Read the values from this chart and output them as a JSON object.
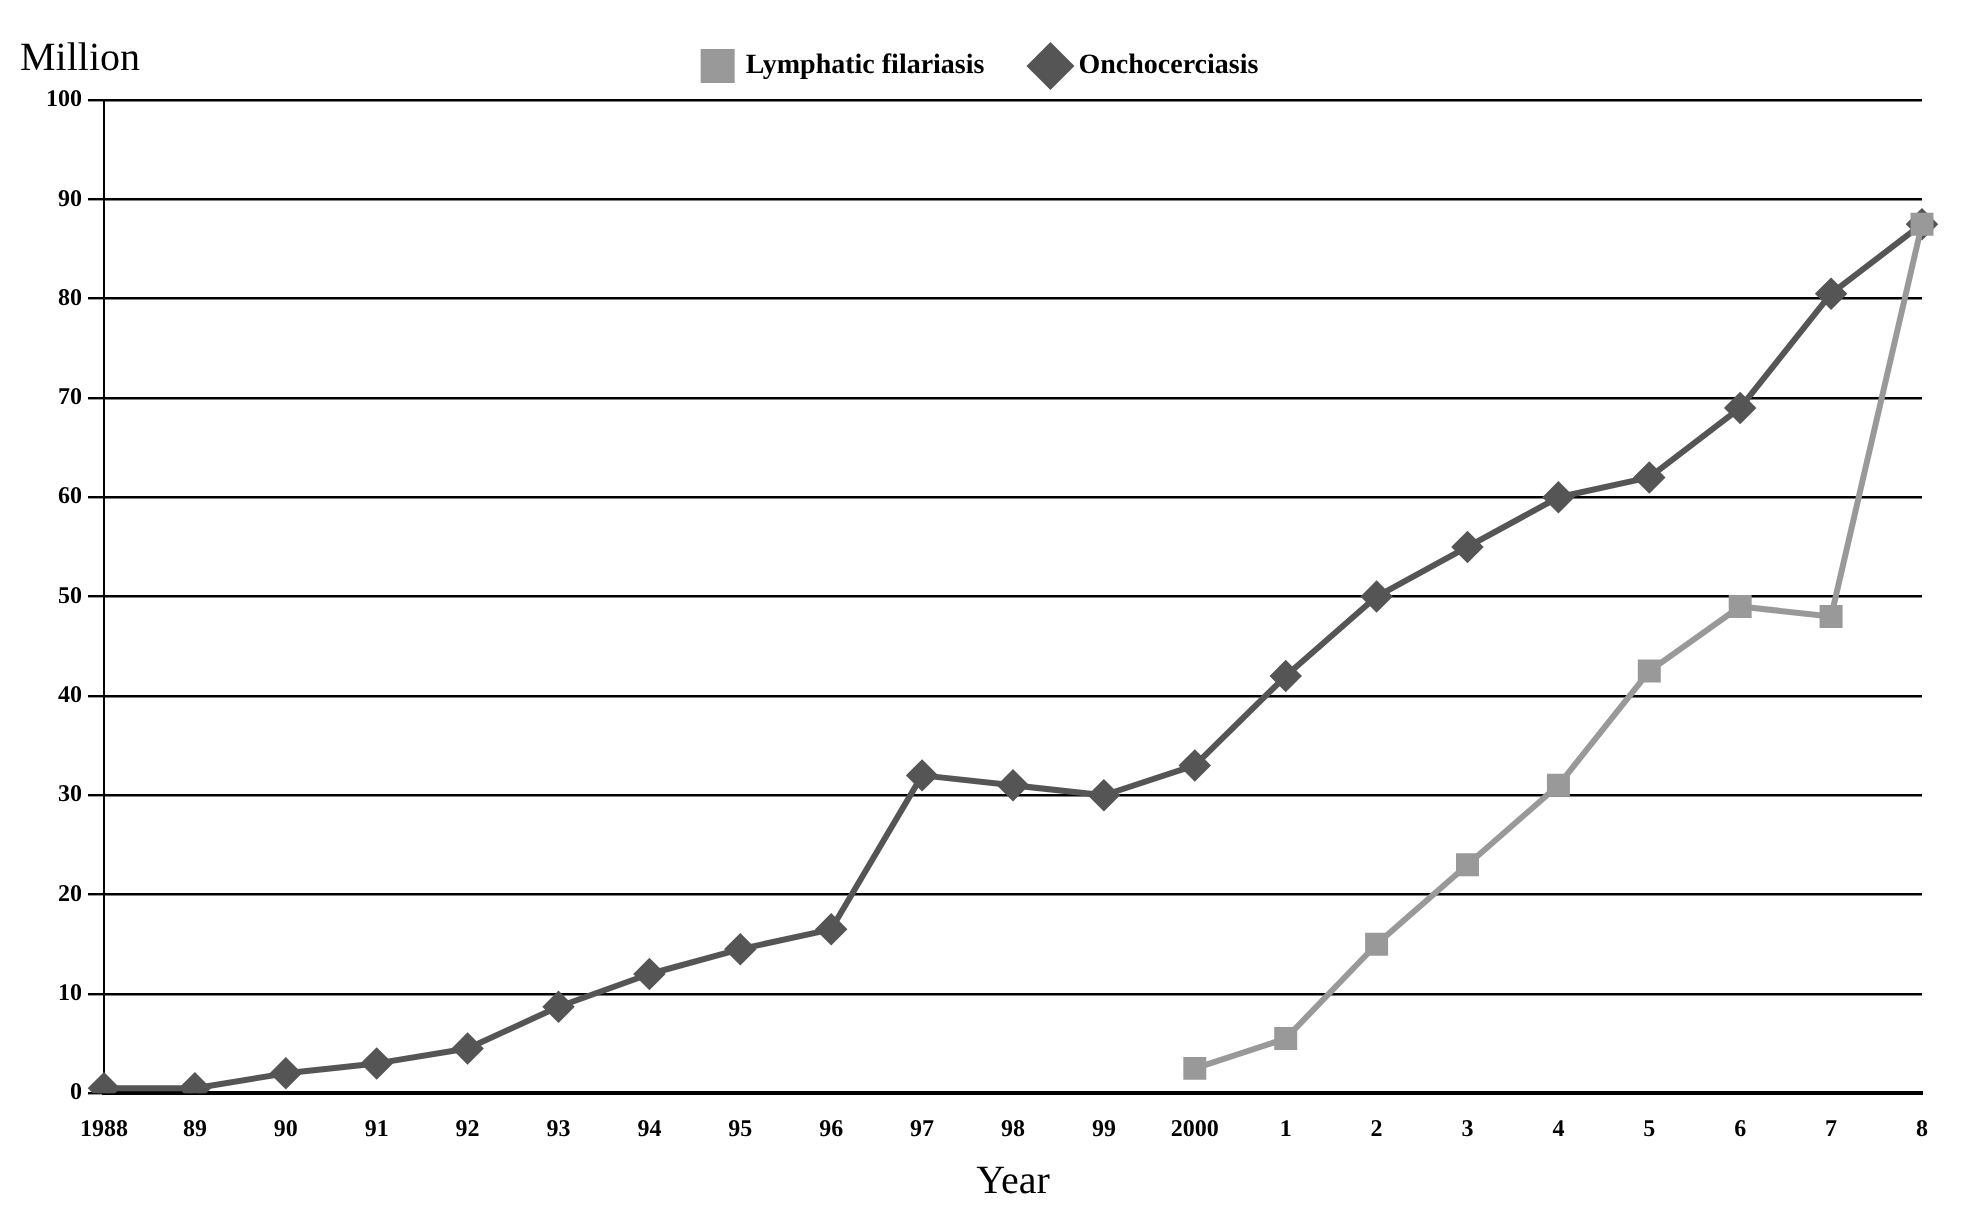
{
  "chart_data": {
    "type": "line",
    "xlabel": "Year",
    "ylabel": "Million",
    "categories": [
      "1988",
      "89",
      "90",
      "91",
      "92",
      "93",
      "94",
      "95",
      "96",
      "97",
      "98",
      "99",
      "2000",
      "1",
      "2",
      "3",
      "4",
      "5",
      "6",
      "7",
      "8"
    ],
    "series": [
      {
        "name": "Onchocerciasis",
        "color": "#555555",
        "marker": "diamond",
        "values": [
          0.5,
          0.5,
          2,
          3,
          4.5,
          8.7,
          12,
          14.5,
          16.5,
          32,
          31,
          30,
          33,
          42,
          50,
          55,
          60,
          62,
          69,
          80.5,
          87.5
        ]
      },
      {
        "name": "Lymphatic filariasis",
        "color": "#999999",
        "marker": "square",
        "values": [
          null,
          null,
          null,
          null,
          null,
          null,
          null,
          null,
          null,
          null,
          null,
          null,
          2.5,
          5.5,
          15,
          23,
          31,
          42.5,
          49,
          48,
          87.5
        ]
      }
    ],
    "ylim": [
      0,
      100
    ],
    "yticks": [
      0,
      10,
      20,
      30,
      40,
      50,
      60,
      70,
      80,
      90,
      100
    ],
    "grid": "y",
    "legend": "top",
    "line_style": "solid"
  }
}
